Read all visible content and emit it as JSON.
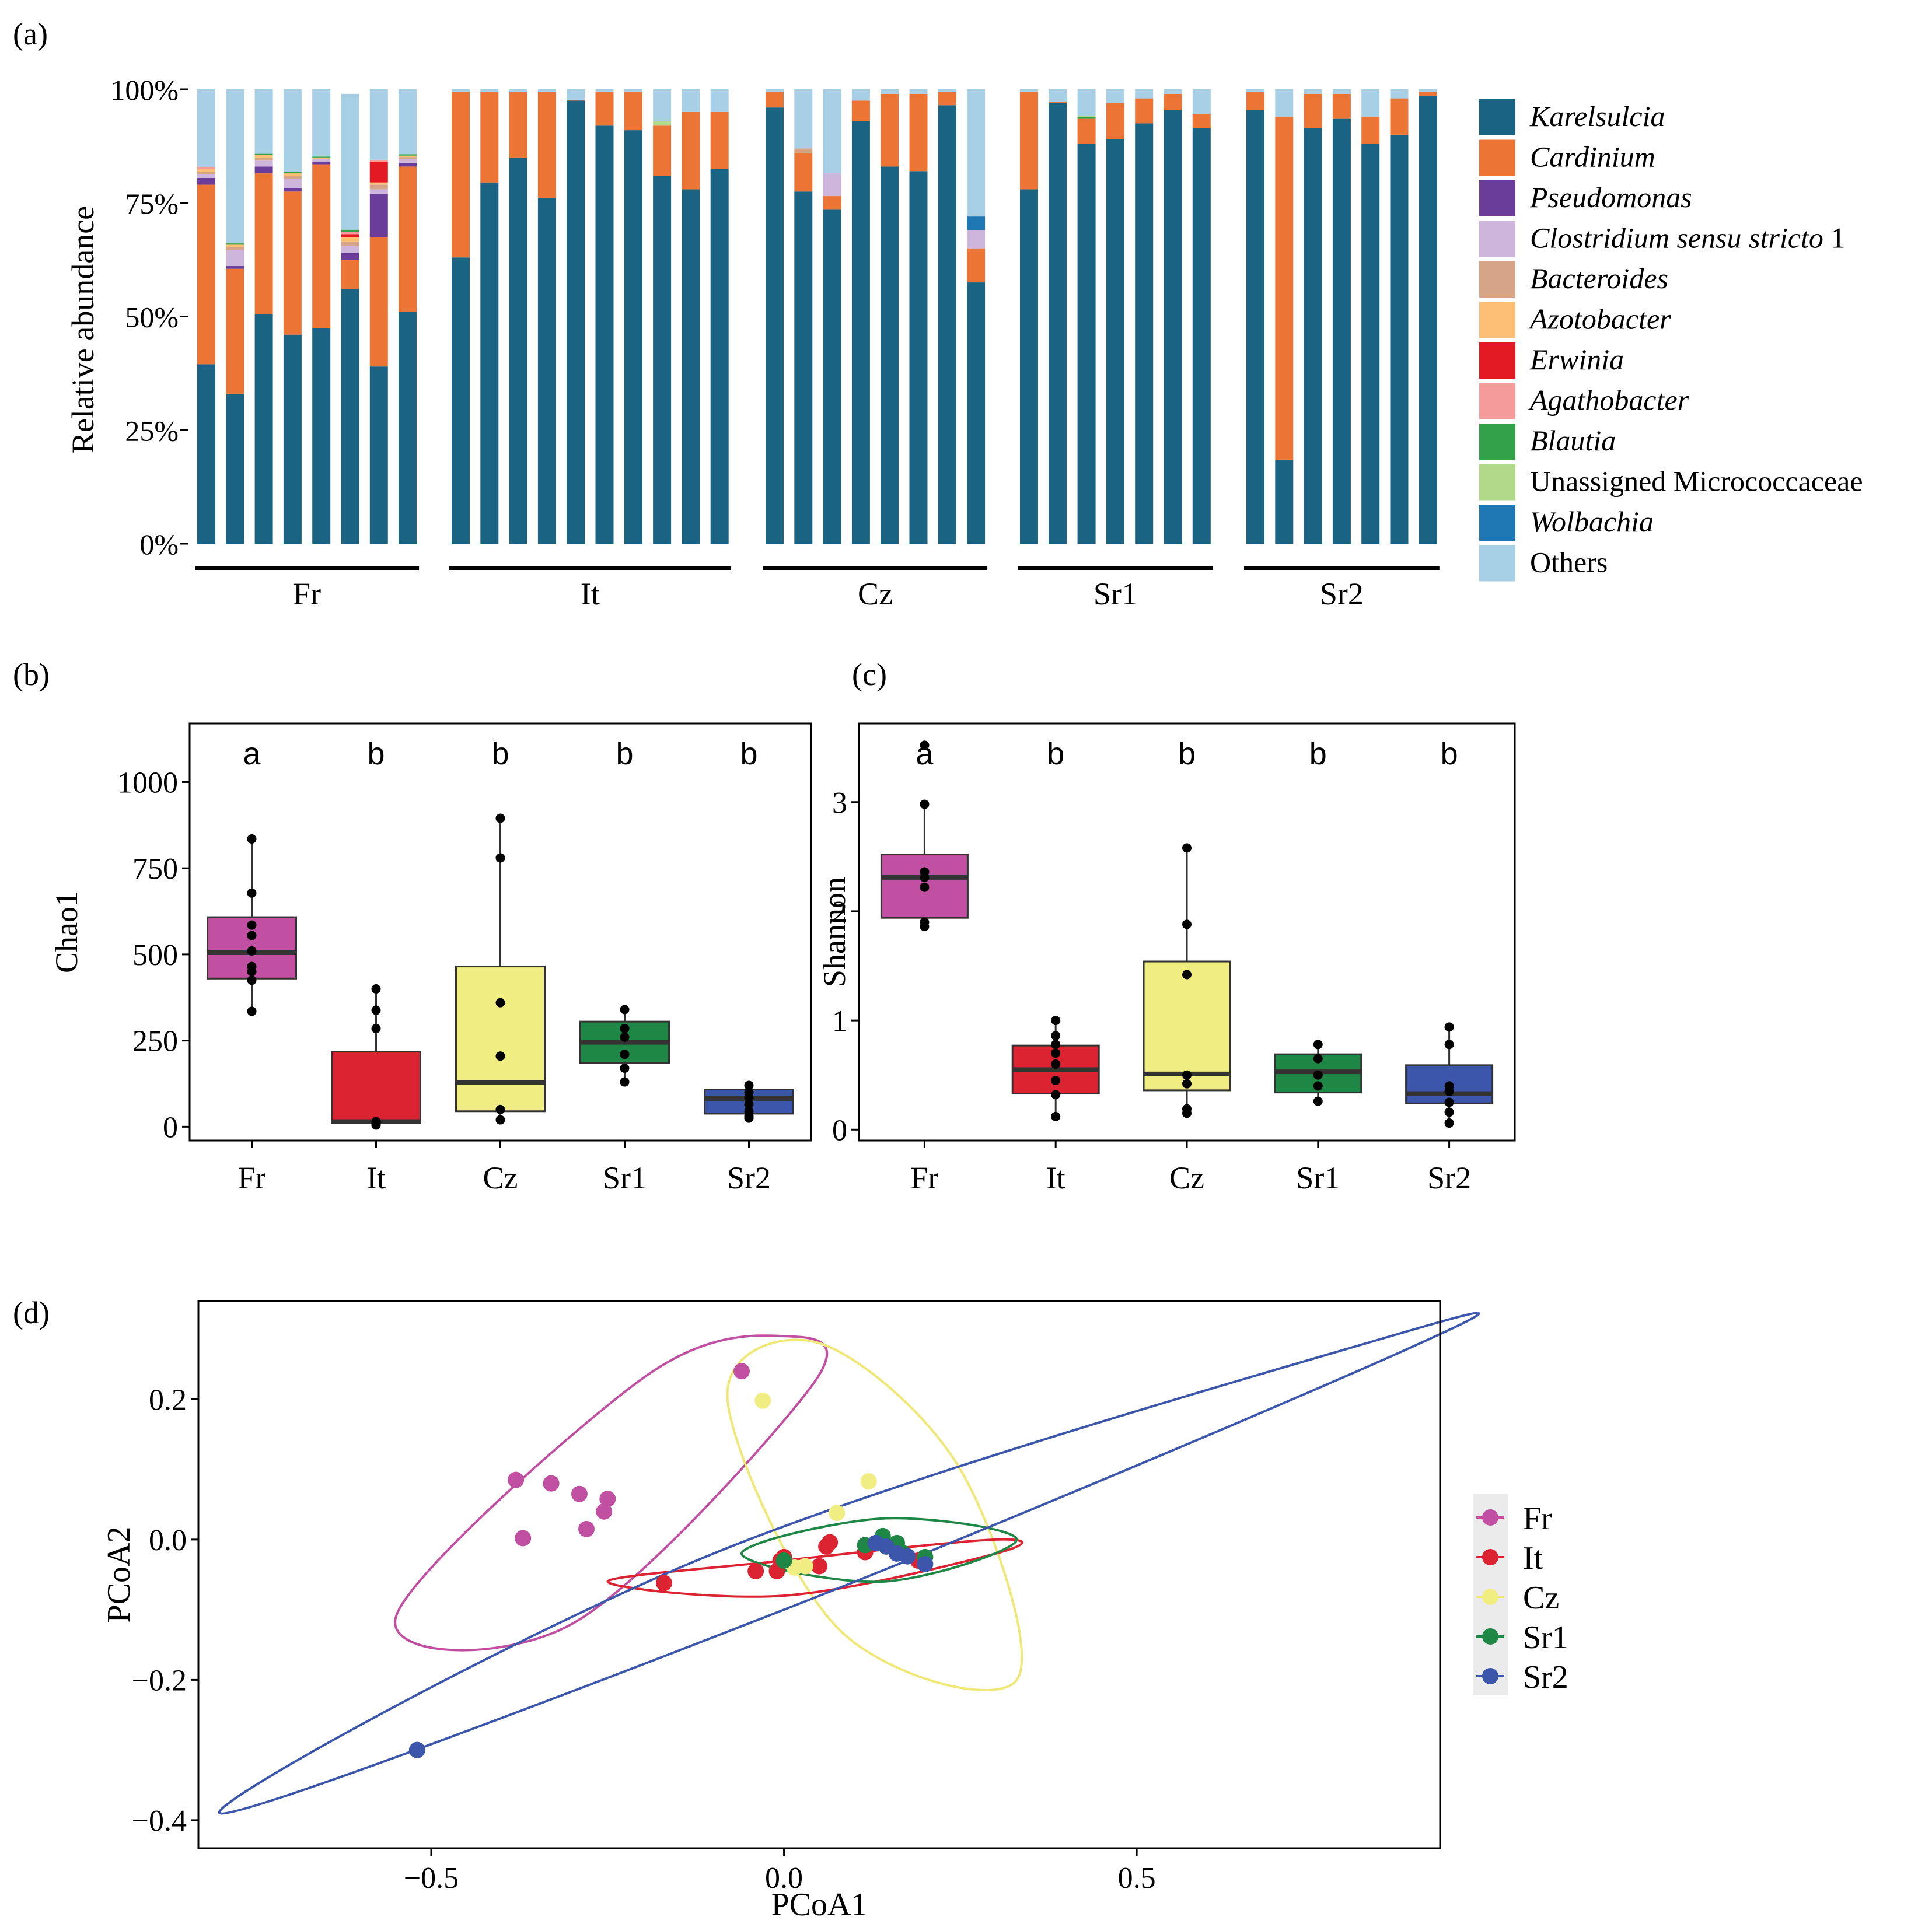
{
  "panel_labels": {
    "a": "(a)",
    "b": "(b)",
    "c": "(c)",
    "d": "(d)"
  },
  "colors": {
    "Karelsulcia": "#1b6383",
    "Cardinium": "#ec7536",
    "Pseudomonas": "#6a3d9a",
    "Clostridium": "#cdb5dc",
    "Bacteroides": "#d6a588",
    "Azotobacter": "#fcbf75",
    "Erwinia": "#e31a24",
    "Agathobacter": "#f59b9b",
    "Blautia": "#33a04a",
    "Micrococcaceae": "#b2d88a",
    "Wolbachia": "#1f78b4",
    "Others": "#a7d0e6",
    "Fr": "#c250a2",
    "It": "#dc2331",
    "Cz": "#f0ee82",
    "Sr1": "#1f8746",
    "Sr2": "#3b56ab",
    "Fr_line": "#c250a2",
    "It_line": "#dc2331",
    "Cz_line": "#efe877",
    "Sr1_line": "#1f8746",
    "Sr2_line": "#3b56ab"
  },
  "chart_data": [
    {
      "type": "bar",
      "stacked": true,
      "panel": "a",
      "ylabel": "Relative abundance",
      "ylim": [
        0,
        100
      ],
      "yticks": [
        0,
        25,
        50,
        75,
        100
      ],
      "ytick_labels": [
        "0%",
        "25%",
        "50%",
        "75%",
        "100%"
      ],
      "legend": [
        {
          "key": "Karelsulcia",
          "italic": true,
          "label": "Karelsulcia"
        },
        {
          "key": "Cardinium",
          "italic": true,
          "label": "Cardinium"
        },
        {
          "key": "Pseudomonas",
          "italic": true,
          "label": "Pseudomonas"
        },
        {
          "key": "Clostridium",
          "italic": true,
          "label": "Clostridium sensu stricto",
          "suffix": " 1"
        },
        {
          "key": "Bacteroides",
          "italic": true,
          "label": "Bacteroides"
        },
        {
          "key": "Azotobacter",
          "italic": true,
          "label": "Azotobacter"
        },
        {
          "key": "Erwinia",
          "italic": true,
          "label": "Erwinia"
        },
        {
          "key": "Agathobacter",
          "italic": true,
          "label": "Agathobacter"
        },
        {
          "key": "Blautia",
          "italic": true,
          "label": "Blautia"
        },
        {
          "key": "Micrococcaceae",
          "italic": false,
          "label": "Unassigned Micrococcaceae"
        },
        {
          "key": "Wolbachia",
          "italic": true,
          "label": "Wolbachia"
        },
        {
          "key": "Others",
          "italic": false,
          "label": "Others"
        }
      ],
      "groups": [
        {
          "name": "Fr",
          "samples": [
            {
              "Karelsulcia": 39.5,
              "Cardinium": 39.5,
              "Pseudomonas": 1.5,
              "Clostridium": 0.8,
              "Bacteroides": 0.6,
              "Azotobacter": 0.5,
              "Agathobacter": 0.4,
              "Others": 17.2
            },
            {
              "Karelsulcia": 33,
              "Cardinium": 27.5,
              "Pseudomonas": 0.6,
              "Clostridium": 3.5,
              "Bacteroides": 0.7,
              "Azotobacter": 0.5,
              "Blautia": 0.3,
              "Others": 33.9
            },
            {
              "Karelsulcia": 50.5,
              "Cardinium": 31,
              "Pseudomonas": 1.5,
              "Clostridium": 1.3,
              "Bacteroides": 0.7,
              "Azotobacter": 0.5,
              "Blautia": 0.3,
              "Others": 14.2
            },
            {
              "Karelsulcia": 46,
              "Cardinium": 31.5,
              "Pseudomonas": 0.8,
              "Clostridium": 2.0,
              "Bacteroides": 0.7,
              "Azotobacter": 0.5,
              "Blautia": 0.3,
              "Others": 18.2
            },
            {
              "Karelsulcia": 47.5,
              "Cardinium": 36,
              "Pseudomonas": 0.5,
              "Clostridium": 0.7,
              "Azotobacter": 0.3,
              "Blautia": 0.2,
              "Others": 14.8
            },
            {
              "Karelsulcia": 56,
              "Cardinium": 6.5,
              "Pseudomonas": 1.5,
              "Clostridium": 1.5,
              "Bacteroides": 1.0,
              "Azotobacter": 1.0,
              "Erwinia": 0.6,
              "Agathobacter": 0.5,
              "Blautia": 0.5,
              "Others": 29.9
            },
            {
              "Karelsulcia": 39,
              "Cardinium": 28.5,
              "Pseudomonas": 9.5,
              "Clostridium": 1.0,
              "Bacteroides": 1.0,
              "Azotobacter": 0.5,
              "Erwinia": 4.5,
              "Agathobacter": 0.5,
              "Others": 15.5
            },
            {
              "Karelsulcia": 51,
              "Cardinium": 32,
              "Pseudomonas": 0.8,
              "Clostridium": 0.8,
              "Bacteroides": 0.5,
              "Azotobacter": 0.3,
              "Blautia": 0.3,
              "Others": 14.3
            }
          ]
        },
        {
          "name": "It",
          "samples": [
            {
              "Karelsulcia": 63,
              "Cardinium": 36.5,
              "Others": 0.5
            },
            {
              "Karelsulcia": 79.5,
              "Cardinium": 20,
              "Others": 0.5
            },
            {
              "Karelsulcia": 85,
              "Cardinium": 14.5,
              "Others": 0.5
            },
            {
              "Karelsulcia": 76,
              "Cardinium": 23.5,
              "Others": 0.5
            },
            {
              "Karelsulcia": 97.5,
              "Cardinium": 0.2,
              "Others": 2.3
            },
            {
              "Karelsulcia": 92,
              "Cardinium": 7.5,
              "Others": 0.5
            },
            {
              "Karelsulcia": 91,
              "Cardinium": 8.5,
              "Others": 0.5
            },
            {
              "Karelsulcia": 81,
              "Cardinium": 11,
              "Micrococcaceae": 1.0,
              "Others": 7.0
            },
            {
              "Karelsulcia": 78,
              "Cardinium": 17,
              "Others": 5.0
            },
            {
              "Karelsulcia": 82.5,
              "Cardinium": 12.5,
              "Others": 5.0
            }
          ]
        },
        {
          "name": "Cz",
          "samples": [
            {
              "Karelsulcia": 96,
              "Cardinium": 3.5,
              "Others": 0.5
            },
            {
              "Karelsulcia": 77.5,
              "Cardinium": 8.5,
              "Bacteroides": 1.0,
              "Others": 13.0
            },
            {
              "Karelsulcia": 73.5,
              "Cardinium": 3,
              "Clostridium": 5.0,
              "Others": 18.5
            },
            {
              "Karelsulcia": 93,
              "Cardinium": 4.5,
              "Others": 2.5
            },
            {
              "Karelsulcia": 83,
              "Cardinium": 16,
              "Others": 1.0
            },
            {
              "Karelsulcia": 82,
              "Cardinium": 17,
              "Others": 1.0
            },
            {
              "Karelsulcia": 96.5,
              "Cardinium": 3,
              "Others": 0.5
            },
            {
              "Karelsulcia": 57.5,
              "Cardinium": 7.5,
              "Clostridium": 4.0,
              "Wolbachia": 3.0,
              "Others": 28.0
            }
          ]
        },
        {
          "name": "Sr1",
          "samples": [
            {
              "Karelsulcia": 78,
              "Cardinium": 21.5,
              "Others": 0.5
            },
            {
              "Karelsulcia": 97,
              "Cardinium": 0.3,
              "Others": 2.7
            },
            {
              "Karelsulcia": 88,
              "Cardinium": 5.5,
              "Blautia": 0.4,
              "Micrococcaceae": 0.3,
              "Others": 5.8
            },
            {
              "Karelsulcia": 89,
              "Cardinium": 8,
              "Others": 3.0
            },
            {
              "Karelsulcia": 92.5,
              "Cardinium": 5.5,
              "Others": 2.0
            },
            {
              "Karelsulcia": 95.5,
              "Cardinium": 3.5,
              "Others": 1.0
            },
            {
              "Karelsulcia": 91.5,
              "Cardinium": 3,
              "Others": 5.5
            }
          ]
        },
        {
          "name": "Sr2",
          "samples": [
            {
              "Karelsulcia": 95.5,
              "Cardinium": 4,
              "Others": 0.5
            },
            {
              "Karelsulcia": 18.5,
              "Cardinium": 75.5,
              "Others": 6.0
            },
            {
              "Karelsulcia": 91.5,
              "Cardinium": 7.5,
              "Others": 1.0
            },
            {
              "Karelsulcia": 93.5,
              "Cardinium": 5.5,
              "Others": 1.0
            },
            {
              "Karelsulcia": 88,
              "Cardinium": 6,
              "Others": 6.0
            },
            {
              "Karelsulcia": 90,
              "Cardinium": 8,
              "Others": 2.0
            },
            {
              "Karelsulcia": 98.5,
              "Cardinium": 1,
              "Others": 0.5
            }
          ]
        }
      ]
    },
    {
      "type": "box",
      "panel": "b",
      "ylabel": "Chao1",
      "categories": [
        "Fr",
        "It",
        "Cz",
        "Sr1",
        "Sr2"
      ],
      "ylim": [
        -40,
        1170
      ],
      "yticks": [
        0,
        250,
        500,
        750,
        1000
      ],
      "ytick_labels": [
        "0",
        "250",
        "500",
        "750",
        "1000"
      ],
      "significance_letters": [
        "a",
        "b",
        "b",
        "b",
        "b"
      ],
      "boxes": [
        {
          "q1": 430,
          "median": 505,
          "q3": 608,
          "whisker_low": 335,
          "whisker_high": 835
        },
        {
          "q1": 10,
          "median": 15,
          "q3": 218,
          "whisker_low": 5,
          "whisker_high": 400
        },
        {
          "q1": 45,
          "median": 128,
          "q3": 465,
          "whisker_low": 20,
          "whisker_high": 895
        },
        {
          "q1": 185,
          "median": 245,
          "q3": 305,
          "whisker_low": 130,
          "whisker_high": 340
        },
        {
          "q1": 38,
          "median": 82,
          "q3": 108,
          "whisker_low": 25,
          "whisker_high": 120
        }
      ],
      "points": [
        [
          835,
          678,
          585,
          555,
          510,
          465,
          450,
          425,
          335
        ],
        [
          400,
          338,
          285,
          15,
          10,
          5
        ],
        [
          895,
          780,
          360,
          205,
          50,
          20
        ],
        [
          340,
          285,
          260,
          210,
          170,
          130
        ],
        [
          120,
          100,
          85,
          65,
          45,
          30,
          25
        ]
      ]
    },
    {
      "type": "box",
      "panel": "c",
      "ylabel": "Shannon",
      "categories": [
        "Fr",
        "It",
        "Cz",
        "Sr1",
        "Sr2"
      ],
      "ylim": [
        -0.1,
        3.72
      ],
      "yticks": [
        0,
        1,
        2,
        3
      ],
      "ytick_labels": [
        "0",
        "1",
        "2",
        "3"
      ],
      "significance_letters": [
        "a",
        "b",
        "b",
        "b",
        "b"
      ],
      "boxes": [
        {
          "q1": 1.94,
          "median": 2.31,
          "q3": 2.52,
          "whisker_low": 1.86,
          "whisker_high": 2.98
        },
        {
          "q1": 0.33,
          "median": 0.55,
          "q3": 0.77,
          "whisker_low": 0.12,
          "whisker_high": 1.0
        },
        {
          "q1": 0.36,
          "median": 0.51,
          "q3": 1.54,
          "whisker_low": 0.15,
          "whisker_high": 2.58
        },
        {
          "q1": 0.34,
          "median": 0.53,
          "q3": 0.69,
          "whisker_low": 0.26,
          "whisker_high": 0.78
        },
        {
          "q1": 0.24,
          "median": 0.33,
          "q3": 0.59,
          "whisker_low": 0.06,
          "whisker_high": 0.94
        }
      ],
      "points": [
        [
          3.52,
          2.98,
          2.36,
          2.31,
          2.22,
          1.9,
          1.86
        ],
        [
          1.0,
          0.86,
          0.78,
          0.7,
          0.6,
          0.45,
          0.32,
          0.12
        ],
        [
          2.58,
          1.88,
          1.42,
          0.5,
          0.42,
          0.19,
          0.15
        ],
        [
          0.78,
          0.65,
          0.5,
          0.4,
          0.26
        ],
        [
          0.94,
          0.78,
          0.4,
          0.35,
          0.25,
          0.16,
          0.06
        ]
      ]
    },
    {
      "type": "scatter",
      "panel": "d",
      "xlabel": "PCoA1",
      "ylabel": "PCoA2",
      "xlim": [
        -0.83,
        0.93
      ],
      "ylim": [
        -0.44,
        0.34
      ],
      "xticks": [
        -0.5,
        0.0,
        0.5
      ],
      "xtick_labels": [
        "−0.5",
        "0.0",
        "0.5"
      ],
      "yticks": [
        -0.4,
        -0.2,
        0.0,
        0.2
      ],
      "ytick_labels": [
        "−0.4",
        "−0.2",
        "0.0",
        "0.2"
      ],
      "legend": [
        "Fr",
        "It",
        "Cz",
        "Sr1",
        "Sr2"
      ],
      "series": [
        {
          "name": "Fr",
          "points": [
            [
              -0.38,
              0.085
            ],
            [
              -0.33,
              0.08
            ],
            [
              -0.29,
              0.065
            ],
            [
              -0.25,
              0.058
            ],
            [
              -0.255,
              0.04
            ],
            [
              -0.28,
              0.015
            ],
            [
              -0.37,
              0.002
            ],
            [
              -0.06,
              0.24
            ]
          ]
        },
        {
          "name": "It",
          "points": [
            [
              -0.17,
              -0.062
            ],
            [
              -0.04,
              -0.045
            ],
            [
              -0.01,
              -0.045
            ],
            [
              -0.005,
              -0.03
            ],
            [
              0.0,
              -0.025
            ],
            [
              0.05,
              -0.038
            ],
            [
              0.06,
              -0.01
            ],
            [
              0.065,
              -0.004
            ],
            [
              0.115,
              -0.018
            ],
            [
              0.19,
              -0.03
            ]
          ]
        },
        {
          "name": "Cz",
          "points": [
            [
              -0.03,
              0.198
            ],
            [
              0.12,
              0.083
            ],
            [
              0.075,
              0.038
            ],
            [
              0.03,
              -0.038
            ],
            [
              0.015,
              -0.04
            ]
          ]
        },
        {
          "name": "Sr1",
          "points": [
            [
              0.0,
              -0.03
            ],
            [
              0.115,
              -0.008
            ],
            [
              0.14,
              0.005
            ],
            [
              0.16,
              -0.005
            ],
            [
              0.17,
              -0.02
            ],
            [
              0.2,
              -0.025
            ]
          ]
        },
        {
          "name": "Sr2",
          "points": [
            [
              -0.52,
              -0.3
            ],
            [
              0.13,
              -0.005
            ],
            [
              0.145,
              -0.01
            ],
            [
              0.16,
              -0.02
            ],
            [
              0.175,
              -0.024
            ],
            [
              0.2,
              -0.035
            ]
          ]
        }
      ],
      "ellipses": [
        {
          "name": "Fr",
          "path": [
            [
              -0.55,
              -0.11
            ],
            [
              -0.2,
              0.23
            ],
            [
              0.0,
              0.29
            ],
            [
              0.04,
              0.22
            ],
            [
              -0.3,
              -0.12
            ],
            [
              -0.55,
              -0.11
            ]
          ]
        },
        {
          "name": "Cz",
          "path": [
            [
              -0.08,
              0.2
            ],
            [
              0.08,
              -0.13
            ],
            [
              0.33,
              -0.2
            ],
            [
              0.25,
              0.1
            ],
            [
              0.05,
              0.28
            ],
            [
              -0.08,
              0.2
            ]
          ]
        },
        {
          "name": "It",
          "path": [
            [
              -0.25,
              -0.06
            ],
            [
              0.0,
              -0.03
            ],
            [
              0.3,
              0.0
            ],
            [
              0.3,
              -0.02
            ],
            [
              0.0,
              -0.08
            ],
            [
              -0.25,
              -0.06
            ]
          ]
        },
        {
          "name": "Sr1",
          "path": [
            [
              -0.06,
              -0.02
            ],
            [
              0.14,
              0.03
            ],
            [
              0.33,
              0.0
            ],
            [
              0.14,
              -0.06
            ],
            [
              -0.06,
              -0.02
            ]
          ]
        },
        {
          "name": "Sr2",
          "path": [
            [
              -0.8,
              -0.39
            ],
            [
              -0.1,
              -0.02
            ],
            [
              0.86,
              0.29
            ],
            [
              0.88,
              0.27
            ],
            [
              0.0,
              -0.1
            ],
            [
              -0.8,
              -0.39
            ]
          ]
        }
      ]
    }
  ]
}
